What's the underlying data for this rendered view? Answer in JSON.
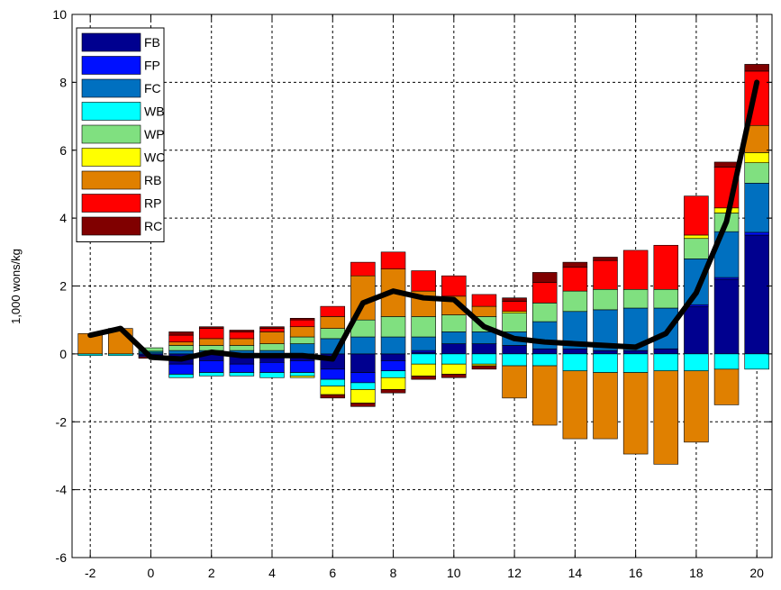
{
  "chart_data": {
    "type": "bar",
    "stacked": true,
    "title": "",
    "xlabel": "",
    "ylabel": "1,000 wons/kg",
    "xlim": [
      -2.6,
      20.5
    ],
    "ylim": [
      -6,
      10
    ],
    "xticks": [
      -2,
      0,
      2,
      4,
      6,
      8,
      10,
      12,
      14,
      16,
      18,
      20
    ],
    "yticks": [
      -6,
      -4,
      -2,
      0,
      2,
      4,
      6,
      8,
      10
    ],
    "grid": true,
    "legend_position": "top-left",
    "x": [
      -2,
      -1,
      0,
      1,
      2,
      3,
      4,
      5,
      6,
      7,
      8,
      9,
      10,
      11,
      12,
      13,
      14,
      15,
      16,
      17,
      18,
      19,
      20
    ],
    "series": [
      {
        "name": "FB",
        "color": "#00008f",
        "values": [
          0,
          0,
          -0.05,
          -0.3,
          -0.2,
          -0.3,
          -0.25,
          -0.2,
          -0.45,
          -0.55,
          -0.2,
          0.05,
          0.3,
          0.3,
          0.25,
          0.15,
          0.15,
          0.1,
          0.1,
          0.15,
          1.4,
          2.2,
          3.5
        ]
      },
      {
        "name": "FP",
        "color": "#0010ff",
        "values": [
          0,
          0,
          -0.03,
          -0.3,
          -0.35,
          -0.25,
          -0.3,
          -0.35,
          -0.3,
          -0.3,
          -0.3,
          0.05,
          0,
          0,
          0,
          0,
          0,
          0,
          0,
          0,
          0.05,
          0.05,
          0.08
        ]
      },
      {
        "name": "FC",
        "color": "#0070c0",
        "values": [
          0,
          0,
          0.05,
          0.1,
          0.1,
          0.1,
          0.1,
          0.3,
          0.45,
          0.5,
          0.5,
          0.4,
          0.35,
          0.35,
          0.4,
          0.8,
          1.1,
          1.2,
          1.25,
          1.2,
          1.35,
          1.35,
          1.45
        ]
      },
      {
        "name": "WB",
        "color": "#00ffff",
        "values": [
          -0.05,
          -0.05,
          0.03,
          -0.1,
          -0.1,
          -0.1,
          -0.15,
          -0.1,
          -0.2,
          -0.2,
          -0.2,
          -0.3,
          -0.3,
          -0.3,
          -0.35,
          -0.35,
          -0.5,
          -0.55,
          -0.55,
          -0.5,
          -0.5,
          -0.45,
          -0.45
        ]
      },
      {
        "name": "WP",
        "color": "#80e080",
        "values": [
          0,
          0,
          0.1,
          0.15,
          0.15,
          0.15,
          0.2,
          0.2,
          0.3,
          0.5,
          0.6,
          0.6,
          0.5,
          0.45,
          0.55,
          0.55,
          0.6,
          0.6,
          0.55,
          0.55,
          0.6,
          0.55,
          0.6
        ]
      },
      {
        "name": "WC",
        "color": "#ffff00",
        "values": [
          0,
          0,
          0,
          0,
          0,
          0,
          0,
          -0.05,
          -0.25,
          -0.4,
          -0.35,
          -0.35,
          -0.3,
          -0.05,
          0.05,
          0,
          0,
          0,
          0,
          0,
          0.1,
          0.15,
          0.3
        ]
      },
      {
        "name": "RB",
        "color": "#e08000",
        "values": [
          0.6,
          0.75,
          0,
          0.1,
          0.2,
          0.2,
          0.35,
          0.3,
          0.35,
          1.3,
          1.4,
          0.75,
          0.55,
          0.3,
          -0.95,
          -1.75,
          -2,
          -1.95,
          -2.4,
          -2.75,
          -2.1,
          -1.05,
          0.8
        ]
      },
      {
        "name": "RP",
        "color": "#ff0000",
        "values": [
          0,
          0,
          0,
          0.2,
          0.3,
          0.2,
          0.1,
          0.2,
          0.3,
          0.4,
          0.5,
          0.6,
          0.6,
          0.35,
          0.3,
          0.6,
          0.7,
          0.85,
          1.15,
          1.3,
          1.15,
          1.2,
          1.6
        ]
      },
      {
        "name": "RC",
        "color": "#800000",
        "values": [
          0,
          0,
          -0.05,
          0.1,
          0.05,
          0.05,
          0.05,
          0.05,
          -0.1,
          -0.1,
          -0.1,
          -0.1,
          -0.1,
          -0.1,
          0.1,
          0.3,
          0.15,
          0.1,
          0,
          0,
          0,
          0.15,
          0.2
        ]
      }
    ],
    "line": {
      "color": "#000000",
      "values": [
        0.55,
        0.75,
        -0.1,
        -0.15,
        0.05,
        -0.05,
        -0.05,
        -0.05,
        -0.15,
        1.5,
        1.85,
        1.65,
        1.6,
        0.8,
        0.45,
        0.35,
        0.3,
        0.25,
        0.2,
        0.6,
        1.8,
        3.9,
        8.0
      ]
    }
  }
}
